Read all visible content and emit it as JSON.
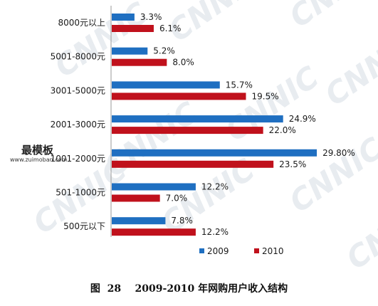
{
  "chart_data": {
    "type": "bar",
    "orientation": "horizontal",
    "categories": [
      "8000元以上",
      "5001-8000元",
      "3001-5000元",
      "2001-3000元",
      "1001-2000元",
      "501-1000元",
      "500元以下"
    ],
    "series": [
      {
        "name": "2009",
        "values": [
          3.3,
          5.2,
          15.7,
          24.9,
          29.8,
          12.2,
          7.8
        ],
        "labels": [
          "3.3%",
          "5.2%",
          "15.7%",
          "24.9%",
          "29.80%",
          "12.2%",
          "7.8%"
        ],
        "color": "#1f6fc1"
      },
      {
        "name": "2010",
        "values": [
          6.1,
          8.0,
          19.5,
          22.0,
          23.5,
          7.0,
          12.2
        ],
        "labels": [
          "6.1%",
          "8.0%",
          "19.5%",
          "22.0%",
          "23.5%",
          "7.0%",
          "12.2%"
        ],
        "color": "#c0111c"
      }
    ],
    "xlim": [
      0,
      30
    ],
    "grid": false,
    "legend_position": "bottom"
  },
  "watermark": {
    "text": "CNNIC"
  },
  "logo": {
    "main": "最模板",
    "sub": "www.zuimoban.com"
  },
  "caption": "图  28    2009-2010 年网购用户收入结构"
}
